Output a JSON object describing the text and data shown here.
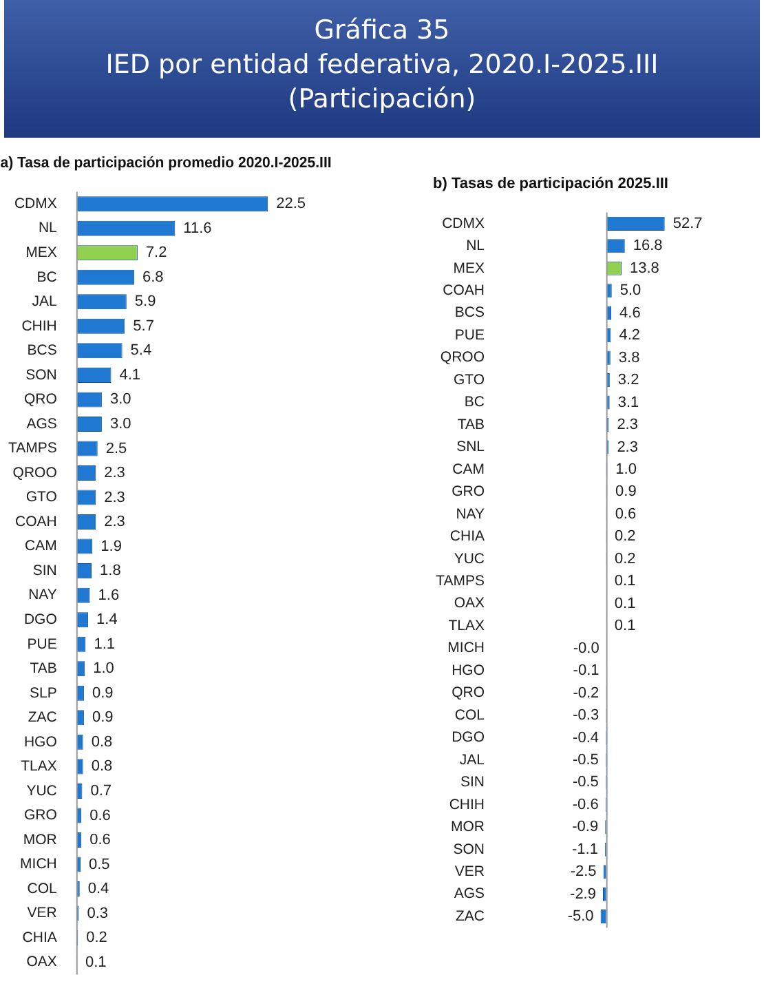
{
  "chart_data": [
    {
      "type": "bar",
      "orientation": "horizontal",
      "title": "a) Tasa de participación promedio 2020.I-2025.III",
      "annotations": [
        "Gráfica 35",
        "IED por entidad federativa, 2020.I-2025.III",
        "(Participación)"
      ],
      "categories": [
        "CDMX",
        "NL",
        "MEX",
        "BC",
        "JAL",
        "CHIH",
        "BCS",
        "SON",
        "QRO",
        "AGS",
        "TAMPS",
        "QROO",
        "GTO",
        "COAH",
        "CAM",
        "SIN",
        "NAY",
        "DGO",
        "PUE",
        "TAB",
        "SLP",
        "ZAC",
        "HGO",
        "TLAX",
        "YUC",
        "GRO",
        "MOR",
        "MICH",
        "COL",
        "VER",
        "CHIA",
        "OAX"
      ],
      "values": [
        22.5,
        11.6,
        7.2,
        6.8,
        5.9,
        5.7,
        5.4,
        4.1,
        3.0,
        3.0,
        2.5,
        2.3,
        2.3,
        2.3,
        1.9,
        1.8,
        1.6,
        1.4,
        1.1,
        1.0,
        0.9,
        0.9,
        0.8,
        0.8,
        0.7,
        0.6,
        0.6,
        0.5,
        0.4,
        0.3,
        0.2,
        0.1
      ],
      "value_labels": [
        "22.5",
        "11.6",
        "7.2",
        "6.8",
        "5.9",
        "5.7",
        "5.4",
        "4.1",
        "3.0",
        "3.0",
        "2.5",
        "2.3",
        "2.3",
        "2.3",
        "1.9",
        "1.8",
        "1.6",
        "1.4",
        "1.1",
        "1.0",
        "0.9",
        "0.9",
        "0.8",
        "0.8",
        "0.7",
        "0.6",
        "0.6",
        "0.5",
        "0.4",
        "0.3",
        "0.2",
        "0.1"
      ],
      "colors": [
        "#1f78d1",
        "#1f78d1",
        "#92d050",
        "#1f78d1",
        "#1f78d1",
        "#1f78d1",
        "#1f78d1",
        "#1f78d1",
        "#1f78d1",
        "#1f78d1",
        "#1f78d1",
        "#1f78d1",
        "#1f78d1",
        "#1f78d1",
        "#1f78d1",
        "#1f78d1",
        "#1f78d1",
        "#1f78d1",
        "#1f78d1",
        "#1f78d1",
        "#1f78d1",
        "#1f78d1",
        "#1f78d1",
        "#1f78d1",
        "#1f78d1",
        "#1f78d1",
        "#1f78d1",
        "#1f78d1",
        "#1f78d1",
        "#1f78d1",
        "#1f78d1",
        "#1f78d1"
      ],
      "grid": false,
      "legend": false
    },
    {
      "type": "bar",
      "orientation": "horizontal",
      "title": "b) Tasas de participación 2025.III",
      "categories": [
        "CDMX",
        "NL",
        "MEX",
        "COAH",
        "BCS",
        "PUE",
        "QROO",
        "GTO",
        "BC",
        "TAB",
        "SNL",
        "CAM",
        "GRO",
        "NAY",
        "CHIA",
        "YUC",
        "TAMPS",
        "OAX",
        "TLAX",
        "MICH",
        "HGO",
        "QRO",
        "COL",
        "DGO",
        "JAL",
        "SIN",
        "CHIH",
        "MOR",
        "SON",
        "VER",
        "AGS",
        "ZAC"
      ],
      "values": [
        52.7,
        16.8,
        13.8,
        5.0,
        4.6,
        4.2,
        3.8,
        3.2,
        3.1,
        2.3,
        2.3,
        1.0,
        0.9,
        0.6,
        0.2,
        0.2,
        0.1,
        0.1,
        0.1,
        -0.0,
        -0.1,
        -0.2,
        -0.3,
        -0.4,
        -0.5,
        -0.5,
        -0.6,
        -0.9,
        -1.1,
        -2.5,
        -2.9,
        -5.0
      ],
      "value_labels": [
        "52.7",
        "16.8",
        "13.8",
        "5.0",
        "4.6",
        "4.2",
        "3.8",
        "3.2",
        "3.1",
        "2.3",
        "2.3",
        "1.0",
        "0.9",
        "0.6",
        "0.2",
        "0.2",
        "0.1",
        "0.1",
        "0.1",
        "-0.0",
        "-0.1",
        "-0.2",
        "-0.3",
        "-0.4",
        "-0.5",
        "-0.5",
        "-0.6",
        "-0.9",
        "-1.1",
        "-2.5",
        "-2.9",
        "-5.0"
      ],
      "colors": [
        "#1f78d1",
        "#1f78d1",
        "#92d050",
        "#1f78d1",
        "#1f78d1",
        "#1f78d1",
        "#1f78d1",
        "#1f78d1",
        "#1f78d1",
        "#1f78d1",
        "#1f78d1",
        "#1f78d1",
        "#1f78d1",
        "#1f78d1",
        "#1f78d1",
        "#1f78d1",
        "#1f78d1",
        "#1f78d1",
        "#1f78d1",
        "#1f78d1",
        "#1f78d1",
        "#1f78d1",
        "#1f78d1",
        "#1f78d1",
        "#1f78d1",
        "#1f78d1",
        "#1f78d1",
        "#1f78d1",
        "#1f78d1",
        "#1f78d1",
        "#1f78d1",
        "#1f78d1"
      ],
      "grid": false,
      "legend": false
    }
  ]
}
